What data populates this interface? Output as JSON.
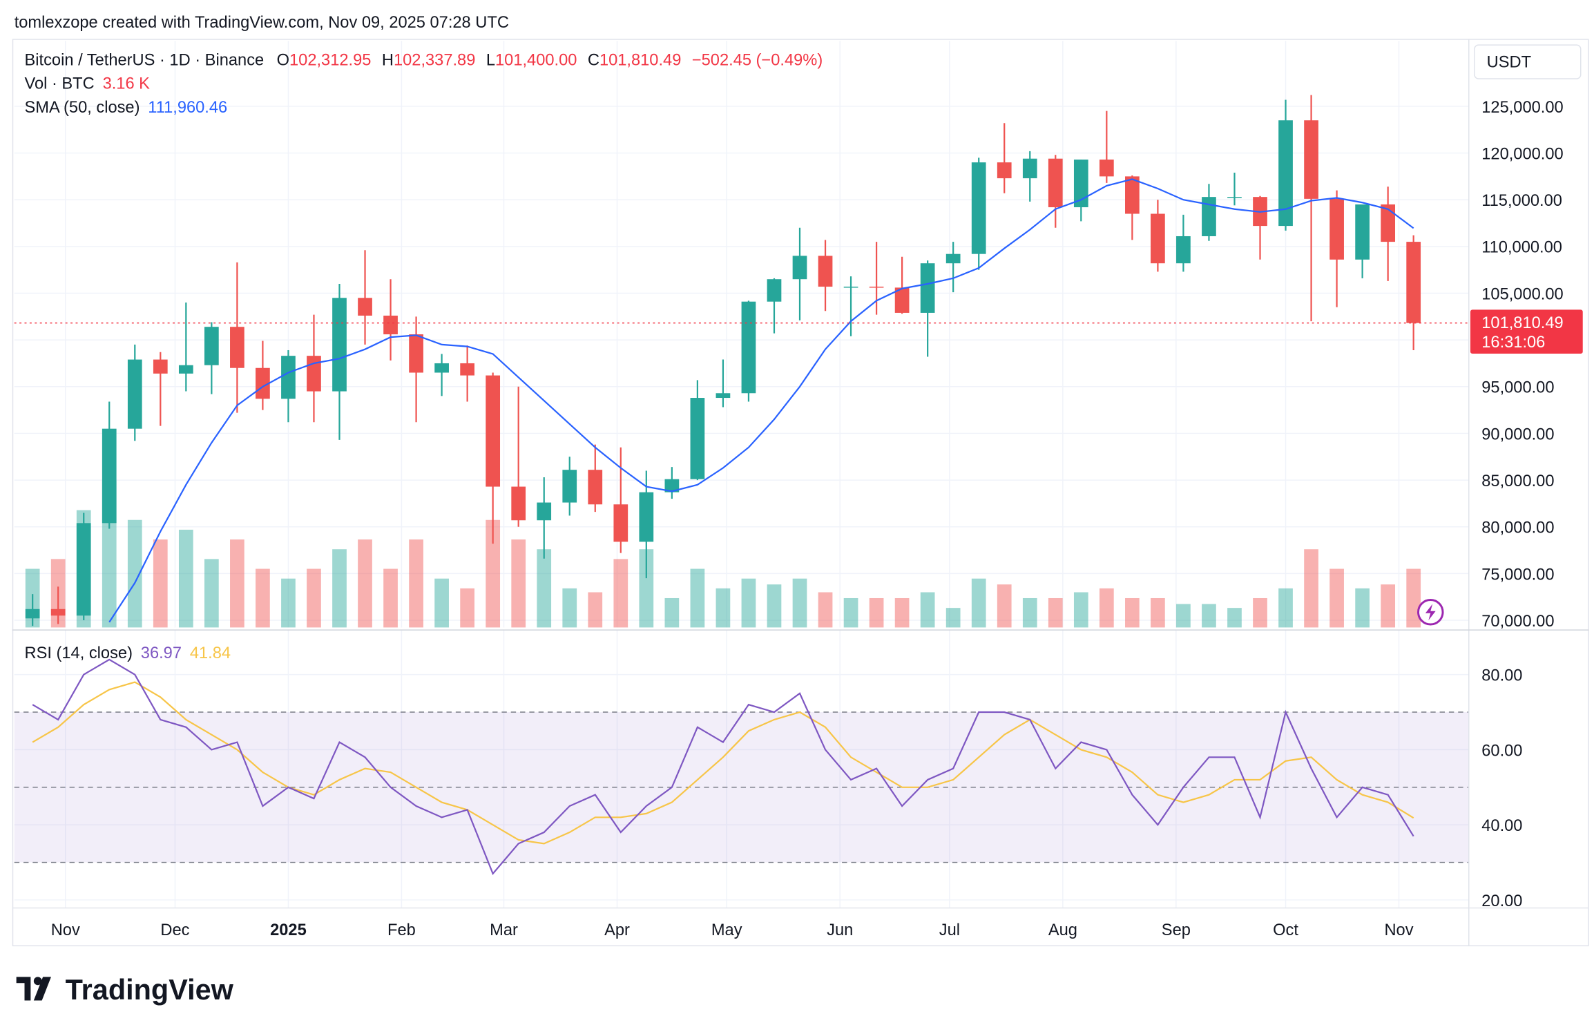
{
  "header": {
    "attribution": "tomlexzope created with TradingView.com, Nov 09, 2025 07:28 UTC",
    "symbol": "Bitcoin / TetherUS · 1D · Binance",
    "ohlc": [
      {
        "key": "O",
        "value": "102,312.95"
      },
      {
        "key": "H",
        "value": "102,337.89"
      },
      {
        "key": "L",
        "value": "101,400.00"
      },
      {
        "key": "C",
        "value": "101,810.49"
      }
    ],
    "change": "−502.45 (−0.49%)",
    "volume": {
      "label": "Vol · BTC",
      "value": "3.16 K"
    },
    "sma": {
      "label": "SMA (50, close)",
      "value": "111,960.46"
    },
    "rsi": {
      "label": "RSI (14, close)",
      "value": "36.97",
      "ma": "41.84"
    }
  },
  "currency": "USDT",
  "brand": "TradingView",
  "chart_data": [
    {
      "type": "candlestick",
      "x": [
        5,
        12,
        19,
        26,
        33,
        40,
        47,
        54,
        61,
        68,
        75,
        82,
        89,
        96,
        103,
        110,
        117,
        124,
        131,
        138,
        145,
        152,
        159,
        166,
        173,
        180,
        187,
        194,
        201,
        208,
        215,
        222,
        229,
        236,
        243,
        250,
        257,
        264,
        271,
        278,
        285,
        292,
        299,
        306,
        313,
        320,
        327,
        334,
        341,
        348,
        355,
        362,
        369,
        376,
        383
      ],
      "open": [
        70200,
        71200,
        70500,
        80400,
        90500,
        97900,
        96400,
        97300,
        101400,
        97000,
        93700,
        98300,
        94500,
        104500,
        102600,
        100600,
        96500,
        97500,
        96200,
        84300,
        80700,
        82600,
        86100,
        82400,
        78400,
        83700,
        85100,
        93800,
        94300,
        104100,
        106500,
        109000,
        105700,
        105700,
        105600,
        102900,
        108200,
        109200,
        119000,
        117300,
        119400,
        114200,
        119300,
        117500,
        113500,
        108200,
        111100,
        115300,
        115300,
        112200,
        123500,
        115100,
        108600,
        114500,
        110500
      ],
      "high": [
        72800,
        73600,
        81500,
        93400,
        99500,
        98700,
        104000,
        101900,
        108300,
        99900,
        98900,
        102700,
        106000,
        109600,
        106500,
        102500,
        98500,
        99400,
        96500,
        95000,
        85300,
        87500,
        88800,
        88500,
        86000,
        86400,
        95700,
        97900,
        104200,
        106600,
        112000,
        110700,
        106800,
        110500,
        108900,
        108500,
        110500,
        119500,
        123200,
        120200,
        119800,
        119300,
        124500,
        117600,
        115000,
        113400,
        116700,
        117900,
        115400,
        125700,
        126200,
        116000,
        114000,
        116400,
        111200
      ],
      "low": [
        69400,
        69600,
        70000,
        79800,
        89200,
        90800,
        94500,
        94200,
        92200,
        92500,
        91200,
        91200,
        89300,
        99500,
        97800,
        91200,
        94000,
        93400,
        78200,
        80000,
        76600,
        81200,
        81600,
        77200,
        74500,
        83000,
        85000,
        92800,
        93400,
        100700,
        102100,
        103100,
        100400,
        102700,
        102800,
        98200,
        105100,
        107500,
        115700,
        114800,
        112000,
        112700,
        116800,
        110700,
        107300,
        107300,
        110600,
        114400,
        108600,
        111700,
        102000,
        103500,
        106600,
        106300,
        98900
      ],
      "close": [
        71200,
        70500,
        80400,
        90500,
        97900,
        96400,
        97300,
        101400,
        97000,
        93700,
        98300,
        94500,
        104500,
        102600,
        100600,
        96500,
        97500,
        96200,
        84300,
        80700,
        82600,
        86100,
        82400,
        78400,
        83700,
        85100,
        93800,
        94300,
        104100,
        106500,
        109000,
        105700,
        105700,
        105600,
        102900,
        108200,
        109200,
        119000,
        117300,
        119400,
        114200,
        119300,
        117500,
        113500,
        108200,
        111100,
        115300,
        115300,
        112200,
        123500,
        115100,
        108600,
        114500,
        110500,
        101810.49
      ],
      "up_color": "#26a69a",
      "down_color": "#ef5350",
      "sma": {
        "color": "#2962ff",
        "values": [
          null,
          null,
          null,
          69800,
          74000,
          79500,
          84500,
          89000,
          93000,
          95000,
          96500,
          97500,
          98000,
          99000,
          100300,
          100500,
          99500,
          99300,
          98500,
          96000,
          93500,
          91000,
          88500,
          86300,
          84300,
          83800,
          84500,
          86300,
          88500,
          91500,
          95000,
          99000,
          102000,
          104200,
          105500,
          106000,
          106600,
          107700,
          109800,
          111800,
          114000,
          115000,
          116500,
          117200,
          116200,
          115000,
          114500,
          114000,
          113700,
          114000,
          114900,
          115200,
          114700,
          114000,
          111960.46
        ]
      },
      "volume": {
        "values": [
          30,
          35,
          60,
          75,
          55,
          45,
          50,
          35,
          45,
          30,
          25,
          30,
          40,
          45,
          30,
          45,
          25,
          20,
          55,
          45,
          40,
          20,
          18,
          35,
          40,
          15,
          30,
          20,
          25,
          22,
          25,
          18,
          15,
          15,
          15,
          18,
          10,
          25,
          22,
          15,
          15,
          18,
          20,
          15,
          15,
          12,
          12,
          10,
          15,
          20,
          40,
          30,
          20,
          22,
          30
        ],
        "ylim": [
          0,
          300
        ]
      },
      "last_price": {
        "value": 101810.49,
        "label": "101,810.49",
        "countdown": "16:31:06",
        "color": "#f23645"
      },
      "xlim": [
        0,
        398
      ],
      "xticks": [
        {
          "value": 14,
          "label": "Nov"
        },
        {
          "value": 44,
          "label": "Dec"
        },
        {
          "value": 75,
          "label": "2025"
        },
        {
          "value": 106,
          "label": "Feb"
        },
        {
          "value": 134,
          "label": "Mar"
        },
        {
          "value": 165,
          "label": "Apr"
        },
        {
          "value": 195,
          "label": "May"
        },
        {
          "value": 226,
          "label": "Jun"
        },
        {
          "value": 256,
          "label": "Jul"
        },
        {
          "value": 287,
          "label": "Aug"
        },
        {
          "value": 318,
          "label": "Sep"
        },
        {
          "value": 348,
          "label": "Oct"
        },
        {
          "value": 379,
          "label": "Nov"
        }
      ],
      "ylim": [
        69230,
        132000
      ],
      "yticks": [
        {
          "value": 70000,
          "label": "70,000.00"
        },
        {
          "value": 75000,
          "label": "75,000.00"
        },
        {
          "value": 80000,
          "label": "80,000.00"
        },
        {
          "value": 85000,
          "label": "85,000.00"
        },
        {
          "value": 90000,
          "label": "90,000.00"
        },
        {
          "value": 95000,
          "label": "95,000.00"
        },
        {
          "value": 100000,
          "label": "100,000.00"
        },
        {
          "value": 105000,
          "label": "105,000.00"
        },
        {
          "value": 110000,
          "label": "110,000.00"
        },
        {
          "value": 115000,
          "label": "115,000.00"
        },
        {
          "value": 120000,
          "label": "120,000.00"
        },
        {
          "value": 125000,
          "label": "125,000.00"
        }
      ],
      "grid": true
    },
    {
      "type": "line",
      "series": [
        {
          "color": "#7e57c2",
          "values": [
            72,
            68,
            80,
            84,
            80,
            68,
            66,
            60,
            62,
            45,
            50,
            47,
            62,
            58,
            50,
            45,
            42,
            44,
            27,
            35,
            38,
            45,
            48,
            38,
            45,
            50,
            66,
            62,
            72,
            70,
            75,
            60,
            52,
            55,
            45,
            52,
            55,
            70,
            70,
            68,
            55,
            62,
            60,
            48,
            40,
            50,
            58,
            58,
            42,
            70,
            55,
            42,
            50,
            48,
            36.97
          ]
        },
        {
          "color": "#f7c548",
          "values": [
            62,
            66,
            72,
            76,
            78,
            74,
            68,
            64,
            60,
            54,
            50,
            48,
            52,
            55,
            54,
            50,
            46,
            44,
            40,
            36,
            35,
            38,
            42,
            42,
            43,
            46,
            52,
            58,
            65,
            68,
            70,
            66,
            58,
            54,
            50,
            50,
            52,
            58,
            64,
            68,
            64,
            60,
            58,
            54,
            48,
            46,
            48,
            52,
            52,
            57,
            58,
            52,
            48,
            46,
            41.84
          ]
        }
      ],
      "bands": [
        70,
        50,
        30
      ],
      "band_color": "#7e57c2",
      "ylim": [
        18,
        92
      ],
      "yticks": [
        {
          "value": 20,
          "label": "20.00"
        },
        {
          "value": 40,
          "label": "40.00"
        },
        {
          "value": 60,
          "label": "60.00"
        },
        {
          "value": 80,
          "label": "80.00"
        }
      ],
      "grid": true
    }
  ]
}
